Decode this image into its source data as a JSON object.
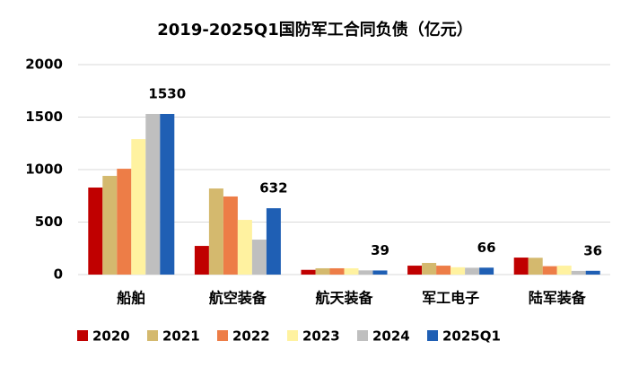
{
  "chart_data": {
    "type": "bar",
    "title": "2019-2025Q1国防军工合同负债（亿元）",
    "categories": [
      "船舶",
      "航空装备",
      "航天装备",
      "军工电子",
      "陆军装备"
    ],
    "series": [
      {
        "name": "2020",
        "color": "#c00000",
        "values": [
          829,
          273,
          45,
          85,
          162
        ]
      },
      {
        "name": "2021",
        "color": "#d4b96e",
        "values": [
          940,
          820,
          60,
          111,
          160
        ]
      },
      {
        "name": "2022",
        "color": "#ed7d47",
        "values": [
          1008,
          744,
          60,
          85,
          80
        ]
      },
      {
        "name": "2023",
        "color": "#fff2a0",
        "values": [
          1290,
          521,
          60,
          70,
          85
        ]
      },
      {
        "name": "2024",
        "color": "#bfbfbf",
        "values": [
          1530,
          333,
          40,
          65,
          35
        ]
      },
      {
        "name": "2025Q1",
        "color": "#1f5fb4",
        "values": [
          1530,
          632,
          39,
          66,
          36
        ],
        "data_labels": true
      }
    ],
    "ylim": [
      0,
      2000
    ],
    "yticks": [
      0,
      500,
      1000,
      1500,
      2000
    ],
    "grid": true,
    "legend": "bottom"
  }
}
